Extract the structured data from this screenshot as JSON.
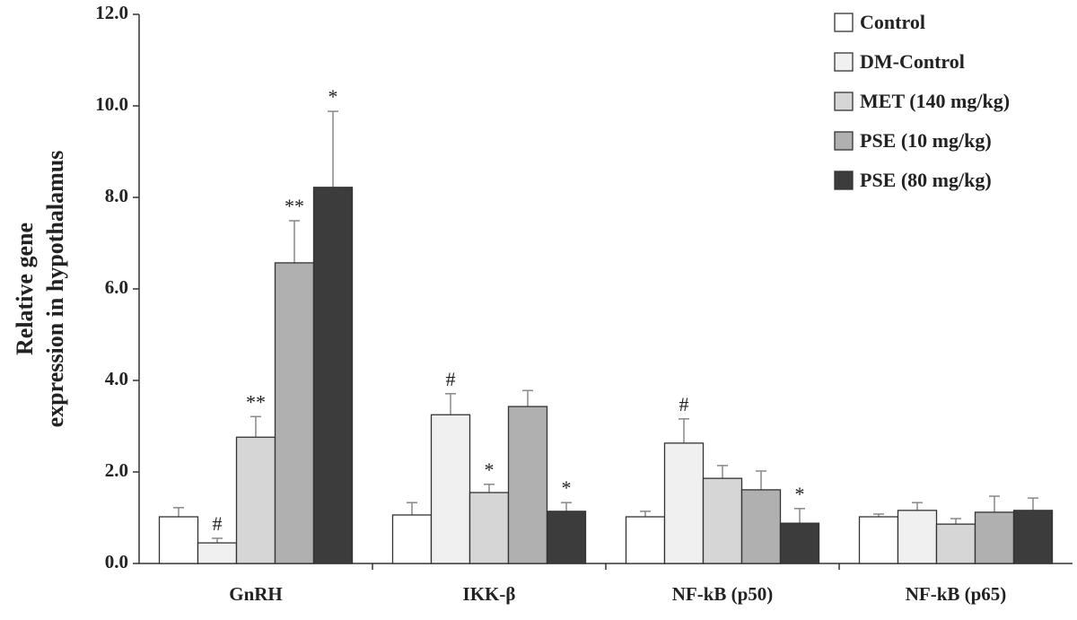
{
  "chart_data": {
    "type": "bar",
    "y_label": [
      "Relative gene",
      "expression in hypothalamus"
    ],
    "categories": [
      "GnRH",
      "IKK-β",
      "NF-kB (p50)",
      "NF-kB (p65)"
    ],
    "series": [
      {
        "name": "Control",
        "color": "#ffffff",
        "values": [
          1.02,
          1.06,
          1.02,
          1.02
        ],
        "errors": [
          0.2,
          0.27,
          0.12,
          0.06
        ],
        "annotations": [
          null,
          null,
          null,
          null
        ]
      },
      {
        "name": "DM-Control",
        "color": "#f0f0f0",
        "values": [
          0.45,
          3.25,
          2.63,
          1.16
        ],
        "errors": [
          0.1,
          0.46,
          0.53,
          0.17
        ],
        "annotations": [
          "#",
          "#",
          "#",
          null
        ]
      },
      {
        "name": "MET (140 mg/kg)",
        "color": "#d6d6d6",
        "values": [
          2.76,
          1.55,
          1.86,
          0.86
        ],
        "errors": [
          0.45,
          0.18,
          0.28,
          0.12
        ],
        "annotations": [
          "**",
          "*",
          null,
          null
        ]
      },
      {
        "name": "PSE (10 mg/kg)",
        "color": "#b0b0b0",
        "values": [
          6.57,
          3.43,
          1.61,
          1.12
        ],
        "errors": [
          0.92,
          0.35,
          0.41,
          0.35
        ],
        "annotations": [
          "**",
          null,
          null,
          null
        ]
      },
      {
        "name": "PSE (80 mg/kg)",
        "color": "#3c3c3c",
        "values": [
          8.22,
          1.14,
          0.88,
          1.16
        ],
        "errors": [
          1.66,
          0.19,
          0.32,
          0.27
        ],
        "annotations": [
          "*",
          "*",
          "*",
          null
        ]
      }
    ],
    "ylim": [
      0,
      12
    ],
    "yticks": [
      {
        "value": 0,
        "label": "0.0"
      },
      {
        "value": 2,
        "label": "2.0"
      },
      {
        "value": 4,
        "label": "4.0"
      },
      {
        "value": 6,
        "label": "6.0"
      },
      {
        "value": 8,
        "label": "8.0"
      },
      {
        "value": 10,
        "label": "10.0"
      },
      {
        "value": 12,
        "label": "12.0"
      }
    ],
    "grid": false,
    "legend": "top-right"
  }
}
